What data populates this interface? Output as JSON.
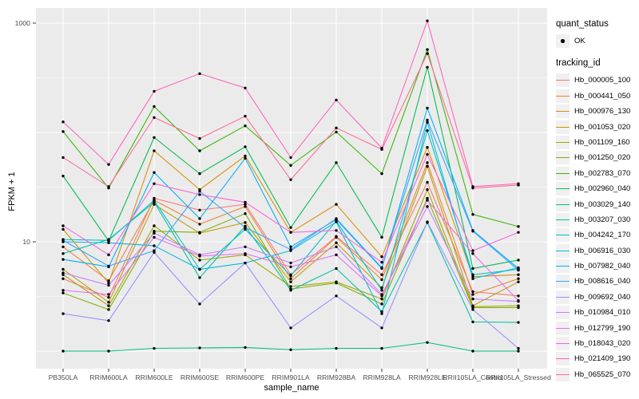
{
  "figure": {
    "background": "#FFFFFF",
    "panel_background": "#EBEBEB",
    "gridline_color": "#FFFFFF",
    "point_color": "#000000",
    "axis_text_color": "#4D4D4D",
    "legend_key_background": "#F0F0F0"
  },
  "axes": {
    "x_title": "sample_name",
    "y_title": "FPKM + 1",
    "y_tick_labels": [
      "1000",
      "10"
    ],
    "y_tick_values": [
      1000,
      10
    ],
    "x_tick_labels": [
      "PB350LA",
      "RRIM600LA",
      "RRIM600LE",
      "RRIM600SE",
      "RRIM600PE",
      "RRIM901LA",
      "RRIM928BA",
      "RRIM928LA",
      "RRIM928LE",
      "RRII105LA_Control",
      "RRII105LA_Stressed"
    ]
  },
  "legend": {
    "quant_status_title": "quant_status",
    "quant_status_items": [
      {
        "label": "OK",
        "marker": "point-icon"
      }
    ],
    "tracking_id_title": "tracking_id"
  },
  "chart_data": {
    "type": "line",
    "title": "",
    "xlabel": "sample_name",
    "ylabel": "FPKM + 1",
    "y_scale": "log10",
    "ylim": [
      0.85,
      1300
    ],
    "grid": "on",
    "legend_position": "right",
    "marker": "black-point",
    "x_categories": [
      "PB350LA",
      "RRIM600LA",
      "RRIM600LE",
      "RRIM600SE",
      "RRIM600PE",
      "RRIM901LA",
      "RRIM928BA",
      "RRIM928LA",
      "RRIM928LE",
      "RRII105LA_Control",
      "RRII105LA_Stressed"
    ],
    "series": [
      {
        "name": "Hb_000005_100",
        "color": "#F8766D",
        "values": [
          4.6,
          3.1,
          25,
          19.5,
          22,
          5.0,
          11.2,
          5.0,
          35,
          3.5,
          3.2
        ]
      },
      {
        "name": "Hb_000441_050",
        "color": "#EA8331",
        "values": [
          9.0,
          4.4,
          24,
          14.5,
          21,
          4.6,
          11.0,
          4.5,
          53,
          3.3,
          4.6
        ]
      },
      {
        "name": "Hb_000976_130",
        "color": "#D89000",
        "values": [
          13.0,
          4.2,
          68,
          30,
          61,
          12.2,
          22,
          7.3,
          73,
          4.8,
          5.0
        ]
      },
      {
        "name": "Hb_001053_020",
        "color": "#C09B00",
        "values": [
          5.6,
          2.8,
          22,
          12.0,
          15.0,
          4.3,
          9.8,
          3.8,
          49,
          2.6,
          4.3
        ]
      },
      {
        "name": "Hb_001109_160",
        "color": "#A3A500",
        "values": [
          5.0,
          2.6,
          14,
          6.8,
          7.6,
          3.9,
          4.3,
          3.0,
          30,
          2.55,
          2.6
        ]
      },
      {
        "name": "Hb_001250_020",
        "color": "#7CAE00",
        "values": [
          3.4,
          2.4,
          12.5,
          12.2,
          18.1,
          3.7,
          4.2,
          2.7,
          25,
          2.5,
          2.5
        ]
      },
      {
        "name": "Hb_002783_070",
        "color": "#39B600",
        "values": [
          102,
          31,
          173,
          68,
          115,
          50,
          101,
          42,
          573,
          17.8,
          13.8
        ]
      },
      {
        "name": "Hb_002960_040",
        "color": "#00BB4E",
        "values": [
          40,
          10.2,
          90,
          42,
          74,
          13.5,
          53,
          11.0,
          395,
          5.7,
          6.8
        ]
      },
      {
        "name": "Hb_003029_140",
        "color": "#00BF7D",
        "values": [
          1.0,
          1.0,
          1.06,
          1.07,
          1.08,
          1.03,
          1.06,
          1.06,
          1.2,
          1.0,
          1.0
        ]
      },
      {
        "name": "Hb_003207_030",
        "color": "#00C1A3",
        "values": [
          7.8,
          10.5,
          23,
          4.7,
          13.9,
          3.6,
          5.7,
          2.3,
          15.0,
          1.85,
          1.83
        ]
      },
      {
        "name": "Hb_004242_170",
        "color": "#00BFC4",
        "values": [
          10.5,
          10.3,
          24,
          5.6,
          13.0,
          4.9,
          15.5,
          3.6,
          104,
          5.0,
          5.6
        ]
      },
      {
        "name": "Hb_006916_030",
        "color": "#00BAE0",
        "values": [
          10.0,
          9.8,
          9.2,
          5.6,
          6.4,
          8.3,
          15.2,
          2.2,
          124,
          4.6,
          5.8
        ]
      },
      {
        "name": "Hb_007982_040",
        "color": "#00B0F6",
        "values": [
          6.9,
          5.9,
          43,
          16.3,
          58,
          9.0,
          16.0,
          5.7,
          167,
          12.7,
          5.7
        ]
      },
      {
        "name": "Hb_008616_040",
        "color": "#35A2FF",
        "values": [
          10.3,
          6.0,
          8.3,
          29,
          13.5,
          8.5,
          16.3,
          5.8,
          130,
          12.5,
          5.5
        ]
      },
      {
        "name": "Hb_009692_040",
        "color": "#9590FF",
        "values": [
          2.2,
          1.9,
          8.0,
          2.7,
          6.4,
          1.63,
          3.2,
          1.63,
          15.2,
          2.4,
          1.06
        ]
      },
      {
        "name": "Hb_010984_010",
        "color": "#C77CFF",
        "values": [
          5.2,
          4.0,
          12.0,
          7.6,
          9.0,
          6.4,
          9.0,
          3.3,
          21,
          3.0,
          2.85
        ]
      },
      {
        "name": "Hb_012799_190",
        "color": "#E76BF3",
        "values": [
          3.6,
          3.3,
          11.0,
          7.4,
          7.8,
          5.9,
          7.6,
          3.2,
          24,
          7.8,
          2.9
        ]
      },
      {
        "name": "Hb_018043_020",
        "color": "#FA62DB",
        "values": [
          14.0,
          7.6,
          34,
          27,
          23,
          12.2,
          12.7,
          6.5,
          63,
          8.3,
          12.2
        ]
      },
      {
        "name": "Hb_021409_190",
        "color": "#FF62BC",
        "values": [
          125,
          51,
          238,
          345,
          255,
          59,
          198,
          72,
          1050,
          32,
          34
        ]
      },
      {
        "name": "Hb_065525_070",
        "color": "#FF6A98",
        "values": [
          59,
          32,
          137,
          88,
          141,
          37,
          110,
          70,
          527,
          31,
          33
        ]
      }
    ]
  }
}
